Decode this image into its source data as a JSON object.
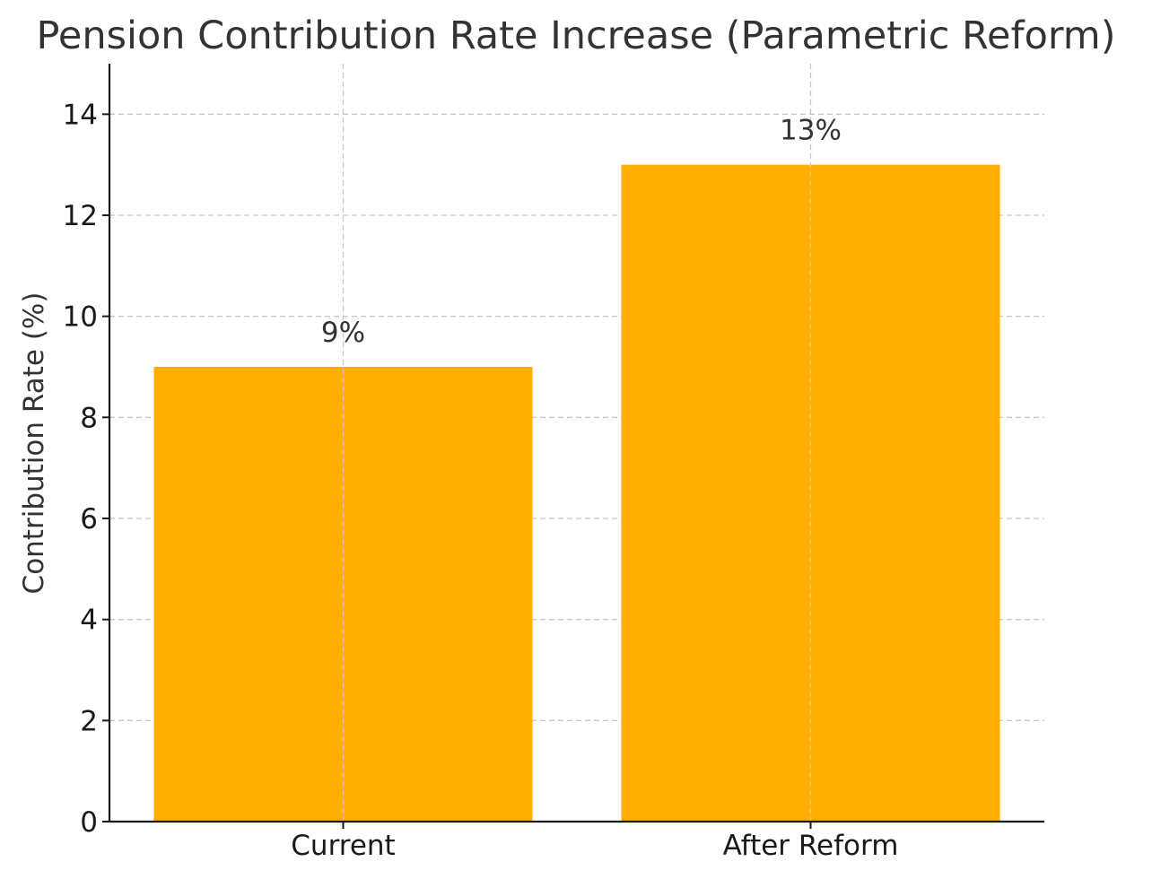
{
  "chart_data": {
    "type": "bar",
    "title": "Pension Contribution Rate Increase (Parametric Reform)",
    "xlabel": "",
    "ylabel": "Contribution Rate (%)",
    "categories": [
      "Current",
      "After Reform"
    ],
    "values": [
      9,
      13
    ],
    "data_labels": [
      "9%",
      "13%"
    ],
    "ylim": [
      0,
      15
    ],
    "yticks": [
      0,
      2,
      4,
      6,
      8,
      10,
      12,
      14
    ],
    "grid": true,
    "bar_color": "#FFAE00"
  }
}
